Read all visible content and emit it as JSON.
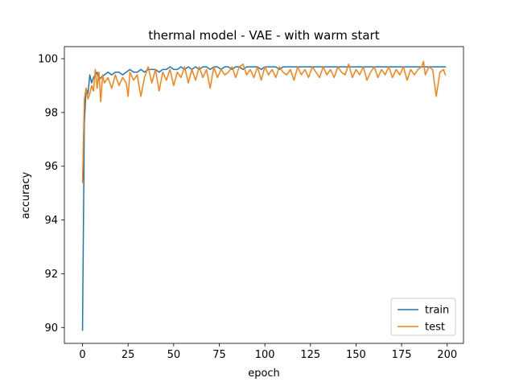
{
  "chart_data": {
    "type": "line",
    "title": "thermal model - VAE - with warm start",
    "xlabel": "epoch",
    "ylabel": "accuracy",
    "xlim": [
      -9.95,
      208.95
    ],
    "ylim": [
      89.41,
      100.45
    ],
    "xticks": [
      0,
      25,
      50,
      75,
      100,
      125,
      150,
      175,
      200
    ],
    "yticks": [
      90,
      92,
      94,
      96,
      98,
      100
    ],
    "grid": false,
    "legend_position": "lower-right",
    "series": [
      {
        "name": "train",
        "color": "#1f77b4",
        "x": [
          0,
          1,
          2,
          3,
          4,
          5,
          6,
          7,
          8,
          9,
          10,
          12,
          14,
          16,
          18,
          20,
          22,
          24,
          26,
          28,
          30,
          32,
          34,
          36,
          38,
          40,
          42,
          44,
          46,
          48,
          50,
          52,
          54,
          56,
          58,
          60,
          62,
          64,
          66,
          68,
          70,
          72,
          74,
          76,
          78,
          80,
          82,
          84,
          86,
          88,
          90,
          92,
          94,
          96,
          98,
          100,
          102,
          104,
          106,
          108,
          110,
          112,
          114,
          116,
          118,
          120,
          122,
          124,
          126,
          128,
          130,
          132,
          134,
          136,
          138,
          140,
          142,
          144,
          146,
          148,
          150,
          152,
          154,
          156,
          158,
          160,
          162,
          164,
          166,
          168,
          170,
          172,
          174,
          176,
          178,
          180,
          182,
          184,
          186,
          188,
          190,
          192,
          194,
          196,
          198,
          199
        ],
        "y": [
          89.9,
          97.6,
          98.9,
          98.7,
          99.4,
          99.1,
          99.3,
          99.4,
          99.5,
          99.2,
          99.3,
          99.4,
          99.5,
          99.4,
          99.5,
          99.5,
          99.4,
          99.5,
          99.6,
          99.5,
          99.5,
          99.6,
          99.5,
          99.6,
          99.6,
          99.6,
          99.5,
          99.6,
          99.6,
          99.7,
          99.6,
          99.6,
          99.7,
          99.6,
          99.7,
          99.6,
          99.7,
          99.6,
          99.7,
          99.7,
          99.6,
          99.7,
          99.7,
          99.6,
          99.7,
          99.7,
          99.6,
          99.7,
          99.7,
          99.6,
          99.7,
          99.7,
          99.7,
          99.7,
          99.6,
          99.7,
          99.7,
          99.7,
          99.7,
          99.6,
          99.7,
          99.7,
          99.7,
          99.7,
          99.7,
          99.7,
          99.7,
          99.7,
          99.7,
          99.7,
          99.7,
          99.7,
          99.7,
          99.7,
          99.7,
          99.7,
          99.7,
          99.7,
          99.7,
          99.7,
          99.7,
          99.7,
          99.7,
          99.7,
          99.7,
          99.7,
          99.7,
          99.7,
          99.7,
          99.7,
          99.7,
          99.7,
          99.7,
          99.7,
          99.7,
          99.7,
          99.7,
          99.7,
          99.7,
          99.7,
          99.7,
          99.7,
          99.7,
          99.7,
          99.7,
          99.7
        ]
      },
      {
        "name": "test",
        "color": "#ff7f0e",
        "x": [
          0,
          1,
          2,
          3,
          4,
          5,
          6,
          7,
          8,
          9,
          10,
          11,
          12,
          14,
          16,
          18,
          20,
          22,
          24,
          25,
          26,
          28,
          30,
          32,
          34,
          36,
          38,
          40,
          42,
          44,
          46,
          48,
          50,
          52,
          54,
          56,
          58,
          60,
          62,
          64,
          66,
          68,
          70,
          72,
          74,
          76,
          78,
          80,
          82,
          84,
          86,
          88,
          90,
          92,
          94,
          96,
          98,
          100,
          102,
          104,
          106,
          108,
          110,
          112,
          114,
          116,
          118,
          120,
          122,
          124,
          126,
          128,
          130,
          132,
          134,
          136,
          138,
          140,
          142,
          144,
          146,
          148,
          150,
          152,
          154,
          156,
          158,
          160,
          162,
          164,
          166,
          168,
          170,
          172,
          174,
          176,
          178,
          180,
          182,
          184,
          186,
          187,
          188,
          190,
          192,
          194,
          196,
          198,
          199
        ],
        "y": [
          95.4,
          98.5,
          98.9,
          98.5,
          98.7,
          99.0,
          98.8,
          99.6,
          98.9,
          99.5,
          98.4,
          99.4,
          99.1,
          99.3,
          98.9,
          99.4,
          99.0,
          99.3,
          99.1,
          98.6,
          99.5,
          99.2,
          99.4,
          98.6,
          99.3,
          99.7,
          99.1,
          99.6,
          98.8,
          99.5,
          99.2,
          99.6,
          99.0,
          99.5,
          99.3,
          99.7,
          99.1,
          99.6,
          99.2,
          99.7,
          99.3,
          99.6,
          98.9,
          99.7,
          99.3,
          99.6,
          99.4,
          99.5,
          99.7,
          99.3,
          99.7,
          99.8,
          99.4,
          99.6,
          99.3,
          99.7,
          99.2,
          99.7,
          99.4,
          99.6,
          99.3,
          99.7,
          99.5,
          99.4,
          99.6,
          99.2,
          99.7,
          99.4,
          99.6,
          99.3,
          99.7,
          99.5,
          99.3,
          99.7,
          99.4,
          99.6,
          99.3,
          99.7,
          99.5,
          99.4,
          99.8,
          99.3,
          99.6,
          99.4,
          99.7,
          99.2,
          99.5,
          99.7,
          99.3,
          99.6,
          99.4,
          99.7,
          99.3,
          99.6,
          99.4,
          99.7,
          99.2,
          99.6,
          99.4,
          99.6,
          99.7,
          99.9,
          99.4,
          99.7,
          99.6,
          98.6,
          99.5,
          99.6,
          99.4
        ]
      }
    ]
  }
}
